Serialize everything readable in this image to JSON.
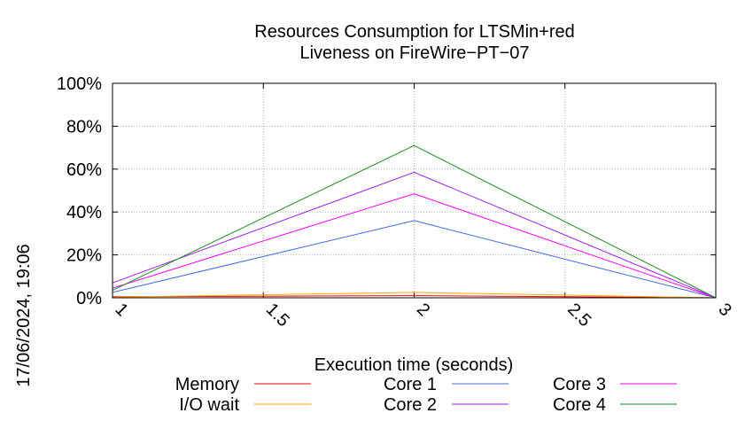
{
  "chart_data": {
    "type": "line",
    "title": "Resources Consumption for LTSMin+red",
    "subtitle": "Liveness on FireWire−PT−07",
    "xlabel": "Execution time (seconds)",
    "ylabel": "",
    "xlim": [
      1,
      3
    ],
    "ylim": [
      0,
      100
    ],
    "x_ticks": [
      "1",
      "1.5",
      "2",
      "2.5",
      "3"
    ],
    "y_ticks": [
      "0%",
      "20%",
      "40%",
      "60%",
      "80%",
      "100%"
    ],
    "grid": true,
    "legend_position": "bottom",
    "side_label": "17/06/2024, 19:06",
    "x": [
      1,
      2,
      3
    ],
    "series": [
      {
        "name": "Memory",
        "color": "#ff0000",
        "values": [
          0.5,
          1.0,
          0.0
        ]
      },
      {
        "name": "I/O wait",
        "color": "#ffa500",
        "values": [
          0.3,
          2.5,
          0.0
        ]
      },
      {
        "name": "Core 1",
        "color": "#4169e1",
        "values": [
          2.5,
          36.0,
          0.0
        ]
      },
      {
        "name": "Core 2",
        "color": "#a020f0",
        "values": [
          7.0,
          58.5,
          0.0
        ]
      },
      {
        "name": "Core 3",
        "color": "#ff00ff",
        "values": [
          4.5,
          48.5,
          0.0
        ]
      },
      {
        "name": "Core 4",
        "color": "#228b22",
        "values": [
          3.5,
          71.0,
          0.0
        ]
      }
    ]
  }
}
